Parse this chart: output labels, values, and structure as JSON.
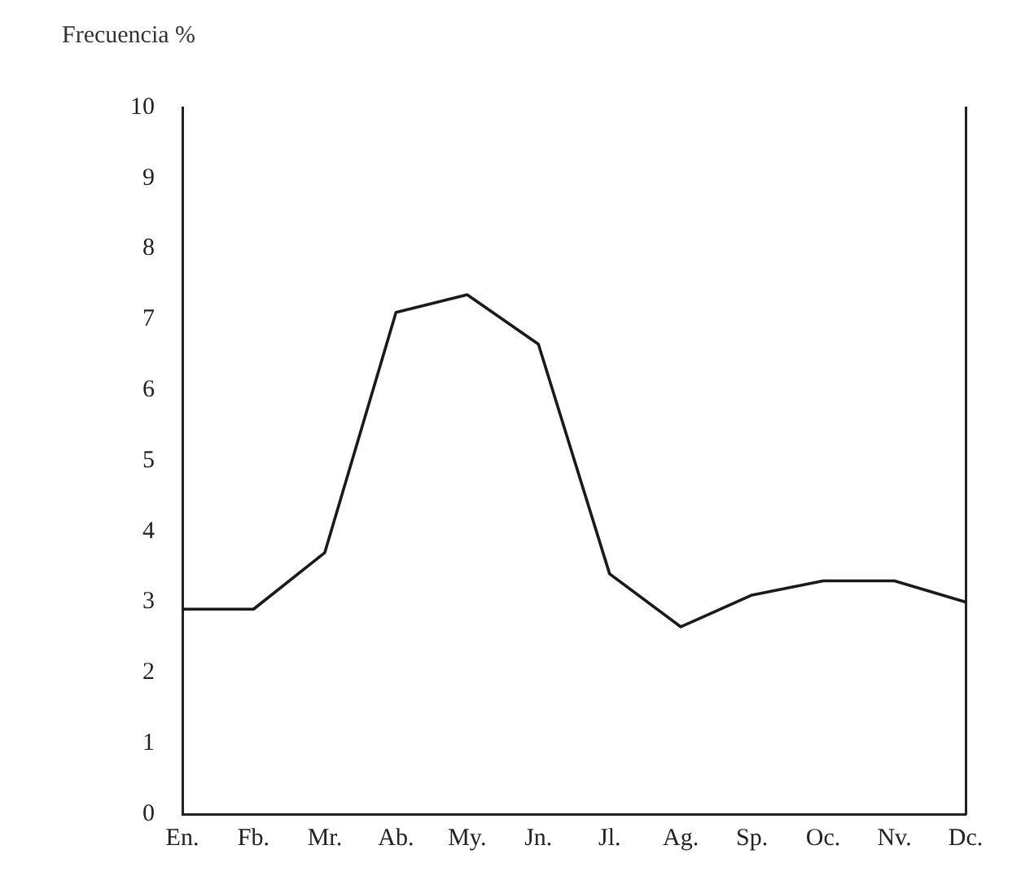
{
  "chart_data": {
    "type": "line",
    "ylabel": "Frecuencia %",
    "categories": [
      "En.",
      "Fb.",
      "Mr.",
      "Ab.",
      "My.",
      "Jn.",
      "Jl.",
      "Ag.",
      "Sp.",
      "Oc.",
      "Nv.",
      "Dc."
    ],
    "series": [
      {
        "color": "#1a1a1a",
        "values": [
          2.9,
          2.9,
          3.7,
          7.1,
          7.35,
          6.65,
          3.4,
          2.65,
          3.1,
          3.3,
          3.3,
          3.0
        ]
      }
    ],
    "ylim": [
      0,
      10
    ],
    "yticks": [
      0,
      1,
      2,
      3,
      4,
      5,
      6,
      7,
      8,
      9,
      10
    ],
    "grid": false,
    "legend": false,
    "marker": "none",
    "line_style": "solid"
  }
}
